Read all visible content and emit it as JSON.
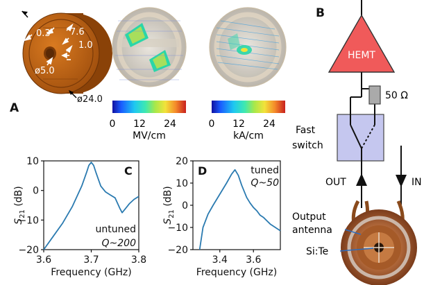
{
  "panel_labels": {
    "a": "A",
    "b": "B",
    "c": "C",
    "d": "D"
  },
  "resonator": {
    "dims": [
      "0.3",
      "7.6",
      "1.0",
      "ø5.0",
      "ø24.0"
    ]
  },
  "colorbars": [
    {
      "ticks": [
        "0",
        "12",
        "24"
      ],
      "unit": "MV/cm"
    },
    {
      "ticks": [
        "0",
        "12",
        "24"
      ],
      "unit": "kA/cm"
    }
  ],
  "circuit": {
    "hemt": "HEMT",
    "resistor": "50 Ω",
    "switch_label_1": "Fast",
    "switch_label_2": "switch",
    "out": "OUT",
    "in": "IN",
    "antenna_1": "Output",
    "antenna_2": "antenna",
    "sample": "Si:Te"
  },
  "chart_data": [
    {
      "type": "line",
      "panel": "C",
      "xlabel": "Frequency (GHz)",
      "ylabel_main": "S",
      "ylabel_sub": "21",
      "ylabel_unit": " (dB)",
      "xlim": [
        3.6,
        3.8
      ],
      "ylim": [
        -20,
        10
      ],
      "xticks": [
        3.6,
        3.7,
        3.8
      ],
      "yticks": [
        -20,
        -10,
        0,
        10
      ],
      "xtick_labels": [
        "3.6",
        "3.7",
        "3.8"
      ],
      "ytick_labels": [
        "−20",
        "−10",
        "0",
        "10"
      ],
      "annotation_1": "untuned",
      "annotation_2": "Q~200",
      "x": [
        3.6,
        3.62,
        3.64,
        3.66,
        3.68,
        3.69,
        3.695,
        3.7,
        3.705,
        3.71,
        3.72,
        3.73,
        3.74,
        3.75,
        3.76,
        3.765,
        3.77,
        3.78,
        3.79,
        3.8
      ],
      "y": [
        -20,
        -15.5,
        -11,
        -5.5,
        1.5,
        6,
        8.5,
        9.5,
        8.5,
        6,
        1.5,
        -0.5,
        -1.5,
        -2.5,
        -6,
        -7.5,
        -6.5,
        -4.5,
        -3,
        -2
      ]
    },
    {
      "type": "line",
      "panel": "D",
      "xlabel": "Frequency (GHz)",
      "ylabel_main": "S",
      "ylabel_sub": "21",
      "ylabel_unit": " (dB)",
      "xlim": [
        3.24,
        3.76
      ],
      "ylim": [
        -20,
        20
      ],
      "xticks": [
        3.4,
        3.6
      ],
      "yticks": [
        -20,
        -10,
        0,
        10,
        20
      ],
      "xtick_labels": [
        "3.4",
        "3.6"
      ],
      "ytick_labels": [
        "−20",
        "−10",
        "0",
        "10",
        "20"
      ],
      "annotation_1": "tuned",
      "annotation_2": "Q~50",
      "x": [
        3.28,
        3.3,
        3.33,
        3.36,
        3.4,
        3.44,
        3.47,
        3.49,
        3.51,
        3.53,
        3.56,
        3.58,
        3.6,
        3.62,
        3.64,
        3.66,
        3.68,
        3.7,
        3.72,
        3.74,
        3.76
      ],
      "y": [
        -20,
        -10,
        -4,
        0,
        5,
        10,
        14,
        16,
        13.5,
        9,
        3.5,
        1,
        -1,
        -2.5,
        -4.5,
        -5.5,
        -7,
        -8.5,
        -9.5,
        -10.5,
        -11.5
      ]
    }
  ]
}
